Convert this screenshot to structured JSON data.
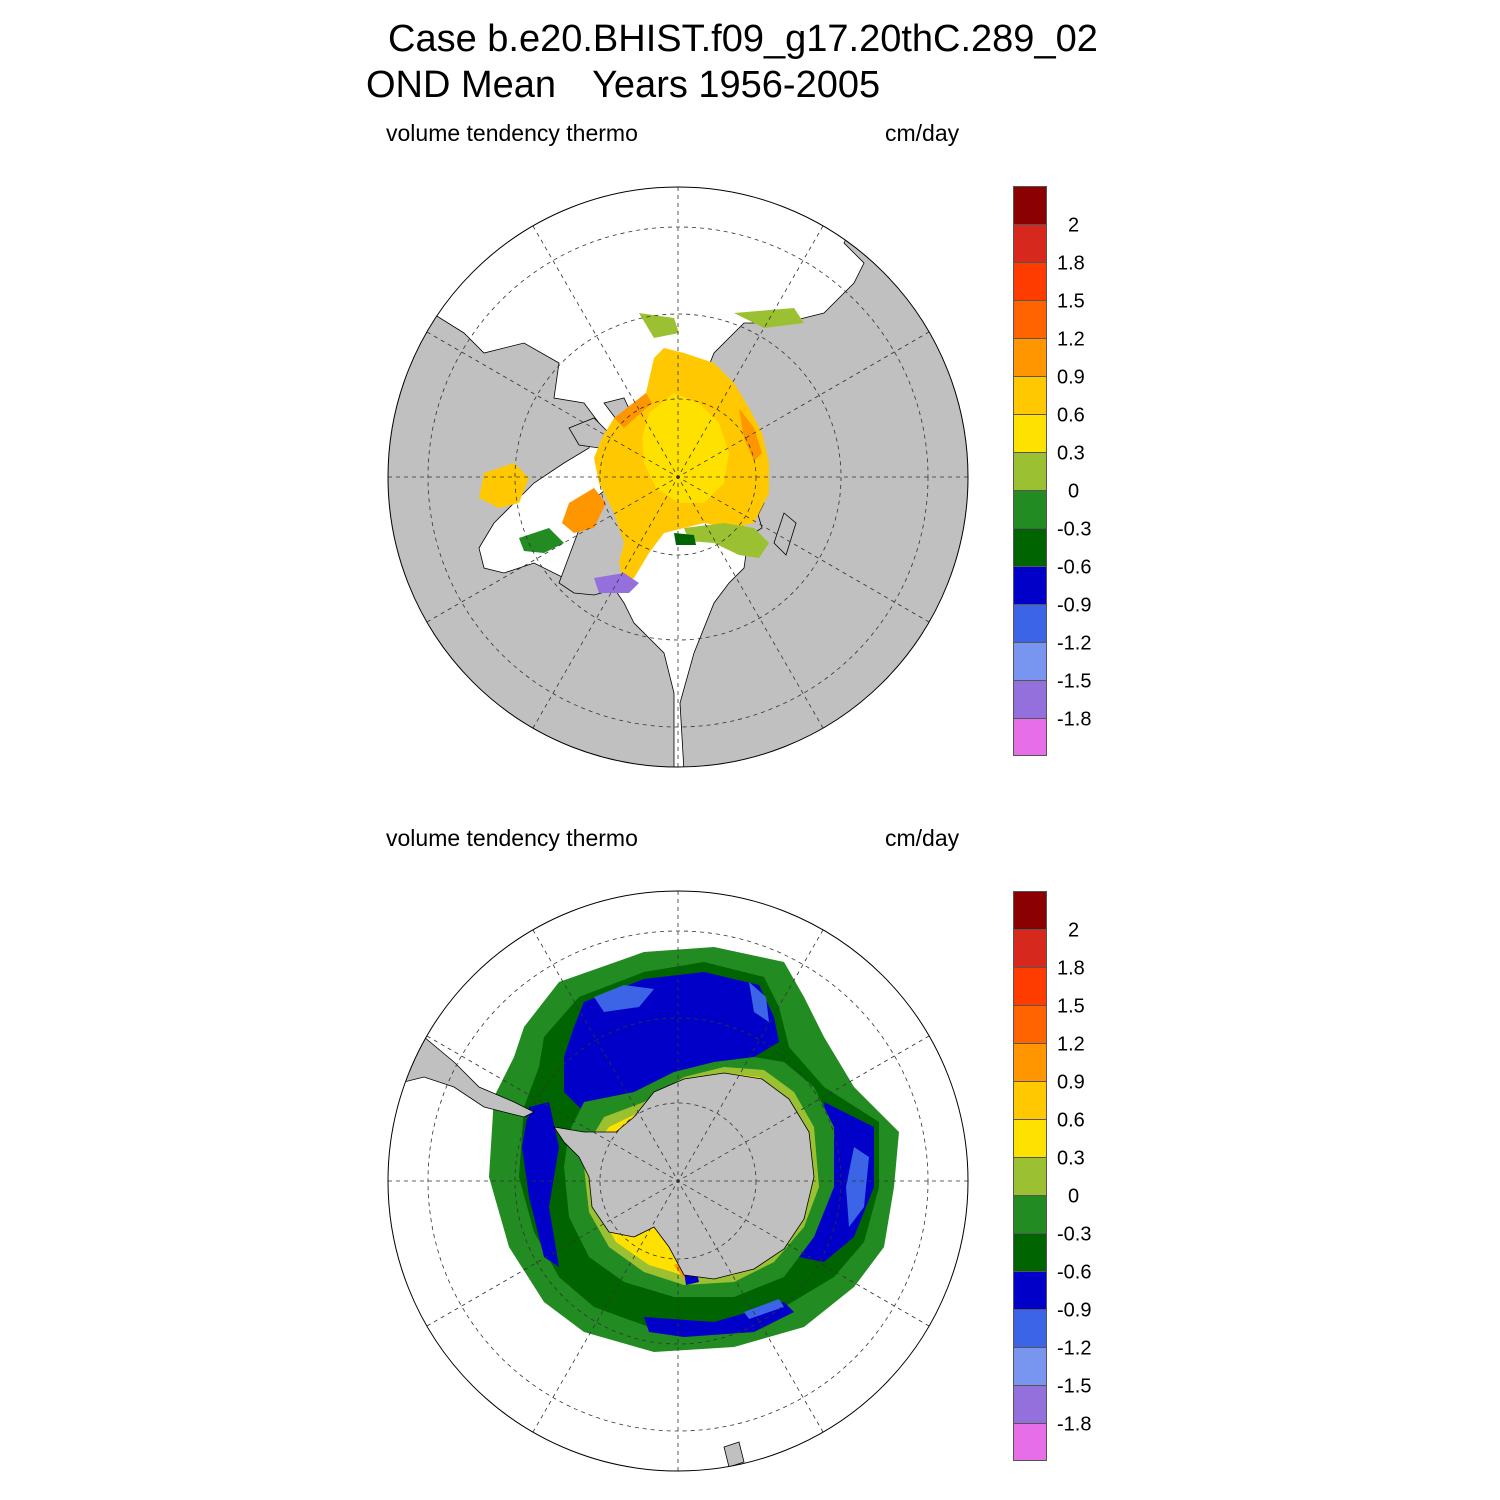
{
  "title": {
    "line1": "Case b.e20.BHIST.f09_g17.20thC.289_02",
    "line2_left": "OND Mean",
    "line2_right": "Years 1956-2005"
  },
  "colors": {
    "land": "#c0c0c0",
    "ocean": "#ffffff",
    "scale": [
      "#8b0000",
      "#d7281e",
      "#ff3c00",
      "#ff6400",
      "#ff9600",
      "#ffc800",
      "#ffe100",
      "#9bc132",
      "#228b22",
      "#006400",
      "#0000c8",
      "#3c64e6",
      "#7896f0",
      "#9370db",
      "#e66ee6"
    ]
  },
  "colorbar": {
    "labels": [
      "2",
      "1.8",
      "1.5",
      "1.2",
      "0.9",
      "0.6",
      "0.3",
      "0",
      "-0.3",
      "-0.6",
      "-0.9",
      "-1.2",
      "-1.5",
      "-1.8"
    ]
  },
  "panels": [
    {
      "id": "north",
      "variable": "volume tendency thermo",
      "units": "cm/day",
      "hemisphere": "Northern"
    },
    {
      "id": "south",
      "variable": "volume tendency thermo",
      "units": "cm/day",
      "hemisphere": "Southern"
    }
  ]
}
